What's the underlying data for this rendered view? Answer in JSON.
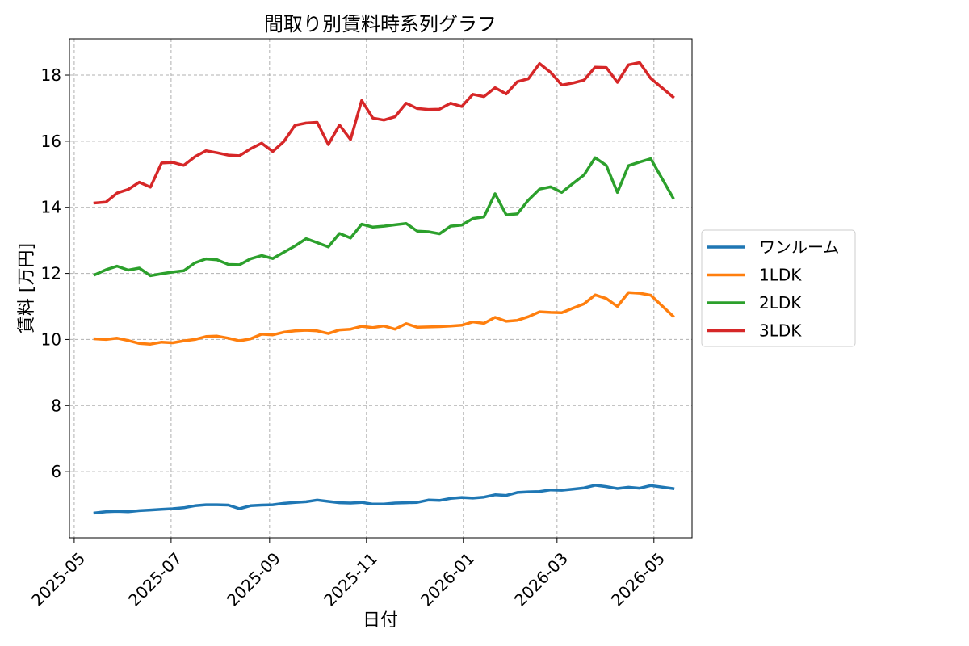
{
  "chart_data": {
    "type": "line",
    "title": "間取り別賃料時系列グラフ",
    "xlabel": "日付",
    "ylabel": "賃料 [万円]",
    "xlim": [
      "2025-04-28",
      "2026-05-25"
    ],
    "ylim": [
      4.0,
      19.1
    ],
    "x_ticks": [
      "2025-05",
      "2025-07",
      "2025-09",
      "2025-11",
      "2026-01",
      "2026-03",
      "2026-05"
    ],
    "y_ticks": [
      6,
      8,
      10,
      12,
      14,
      16,
      18
    ],
    "grid": true,
    "legend_position": "right",
    "x": [
      "2025-05-14",
      "2025-05-21",
      "2025-05-28",
      "2025-06-04",
      "2025-06-11",
      "2025-06-18",
      "2025-06-25",
      "2025-07-02",
      "2025-07-09",
      "2025-07-16",
      "2025-07-23",
      "2025-07-30",
      "2025-08-06",
      "2025-08-13",
      "2025-08-20",
      "2025-08-27",
      "2025-09-03",
      "2025-09-10",
      "2025-09-17",
      "2025-09-24",
      "2025-10-01",
      "2025-10-08",
      "2025-10-15",
      "2025-10-22",
      "2025-10-29",
      "2025-11-05",
      "2025-11-12",
      "2025-11-19",
      "2025-11-26",
      "2025-12-03",
      "2025-12-10",
      "2025-12-17",
      "2025-12-24",
      "2025-12-31",
      "2026-01-07",
      "2026-01-14",
      "2026-01-21",
      "2026-01-28",
      "2026-02-04",
      "2026-02-11",
      "2026-02-18",
      "2026-02-25",
      "2026-03-04",
      "2026-03-11",
      "2026-03-18",
      "2026-03-25",
      "2026-04-01",
      "2026-04-08",
      "2026-04-15",
      "2026-04-22",
      "2026-04-29",
      "2026-05-13"
    ],
    "series": [
      {
        "name": "ワンルーム",
        "color": "#1f77b4",
        "values": [
          4.75,
          4.79,
          4.8,
          4.79,
          4.82,
          4.84,
          4.86,
          4.88,
          4.91,
          4.97,
          5.0,
          5.0,
          4.99,
          4.88,
          4.97,
          4.99,
          5.0,
          5.04,
          5.07,
          5.09,
          5.14,
          5.1,
          5.06,
          5.05,
          5.07,
          5.02,
          5.02,
          5.05,
          5.06,
          5.07,
          5.14,
          5.13,
          5.19,
          5.22,
          5.2,
          5.23,
          5.3,
          5.28,
          5.37,
          5.39,
          5.4,
          5.45,
          5.44,
          5.47,
          5.51,
          5.59,
          5.55,
          5.49,
          5.53,
          5.5,
          5.58,
          5.49
        ]
      },
      {
        "name": "1LDK",
        "color": "#ff7f0e",
        "values": [
          10.02,
          10.0,
          10.04,
          9.97,
          9.88,
          9.86,
          9.92,
          9.9,
          9.96,
          10.0,
          10.09,
          10.1,
          10.04,
          9.96,
          10.02,
          10.16,
          10.14,
          10.22,
          10.26,
          10.28,
          10.26,
          10.18,
          10.29,
          10.31,
          10.4,
          10.36,
          10.41,
          10.31,
          10.48,
          10.37,
          10.38,
          10.39,
          10.41,
          10.43,
          10.53,
          10.49,
          10.67,
          10.55,
          10.58,
          10.69,
          10.84,
          10.82,
          10.81,
          10.95,
          11.08,
          11.35,
          11.24,
          11.0,
          11.42,
          11.4,
          11.34,
          10.71
        ]
      },
      {
        "name": "2LDK",
        "color": "#2ca02c",
        "values": [
          11.96,
          12.11,
          12.22,
          12.1,
          12.16,
          11.93,
          11.99,
          12.04,
          12.08,
          12.32,
          12.44,
          12.41,
          12.27,
          12.26,
          12.44,
          12.54,
          12.45,
          12.64,
          12.83,
          13.05,
          12.93,
          12.8,
          13.21,
          13.07,
          13.49,
          13.4,
          13.43,
          13.47,
          13.51,
          13.28,
          13.26,
          13.2,
          13.43,
          13.46,
          13.66,
          13.71,
          14.41,
          13.77,
          13.8,
          14.22,
          14.55,
          14.62,
          14.45,
          14.72,
          14.98,
          15.5,
          15.27,
          14.45,
          15.26,
          15.37,
          15.47,
          14.29
        ]
      },
      {
        "name": "3LDK",
        "color": "#d62728",
        "values": [
          14.13,
          14.16,
          14.43,
          14.54,
          14.76,
          14.61,
          15.34,
          15.36,
          15.27,
          15.53,
          15.71,
          15.65,
          15.58,
          15.56,
          15.77,
          15.94,
          15.69,
          15.99,
          16.48,
          16.55,
          16.57,
          15.9,
          16.49,
          16.05,
          17.23,
          16.7,
          16.64,
          16.74,
          17.15,
          16.99,
          16.96,
          16.97,
          17.15,
          17.05,
          17.42,
          17.35,
          17.62,
          17.43,
          17.8,
          17.89,
          18.35,
          18.08,
          17.7,
          17.76,
          17.85,
          18.24,
          18.23,
          17.78,
          18.31,
          18.38,
          17.9,
          17.34
        ]
      }
    ]
  }
}
